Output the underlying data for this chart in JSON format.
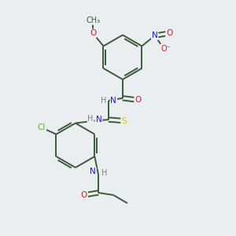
{
  "background_color": "#eaeef0",
  "bond_color": "#3a5a3a",
  "label_colors": {
    "N": "#1a1acc",
    "O": "#cc2020",
    "S": "#cccc00",
    "Cl": "#44cc00",
    "C": "#3a5a3a",
    "H": "#808080"
  },
  "figsize": [
    3.0,
    3.0
  ],
  "dpi": 100
}
